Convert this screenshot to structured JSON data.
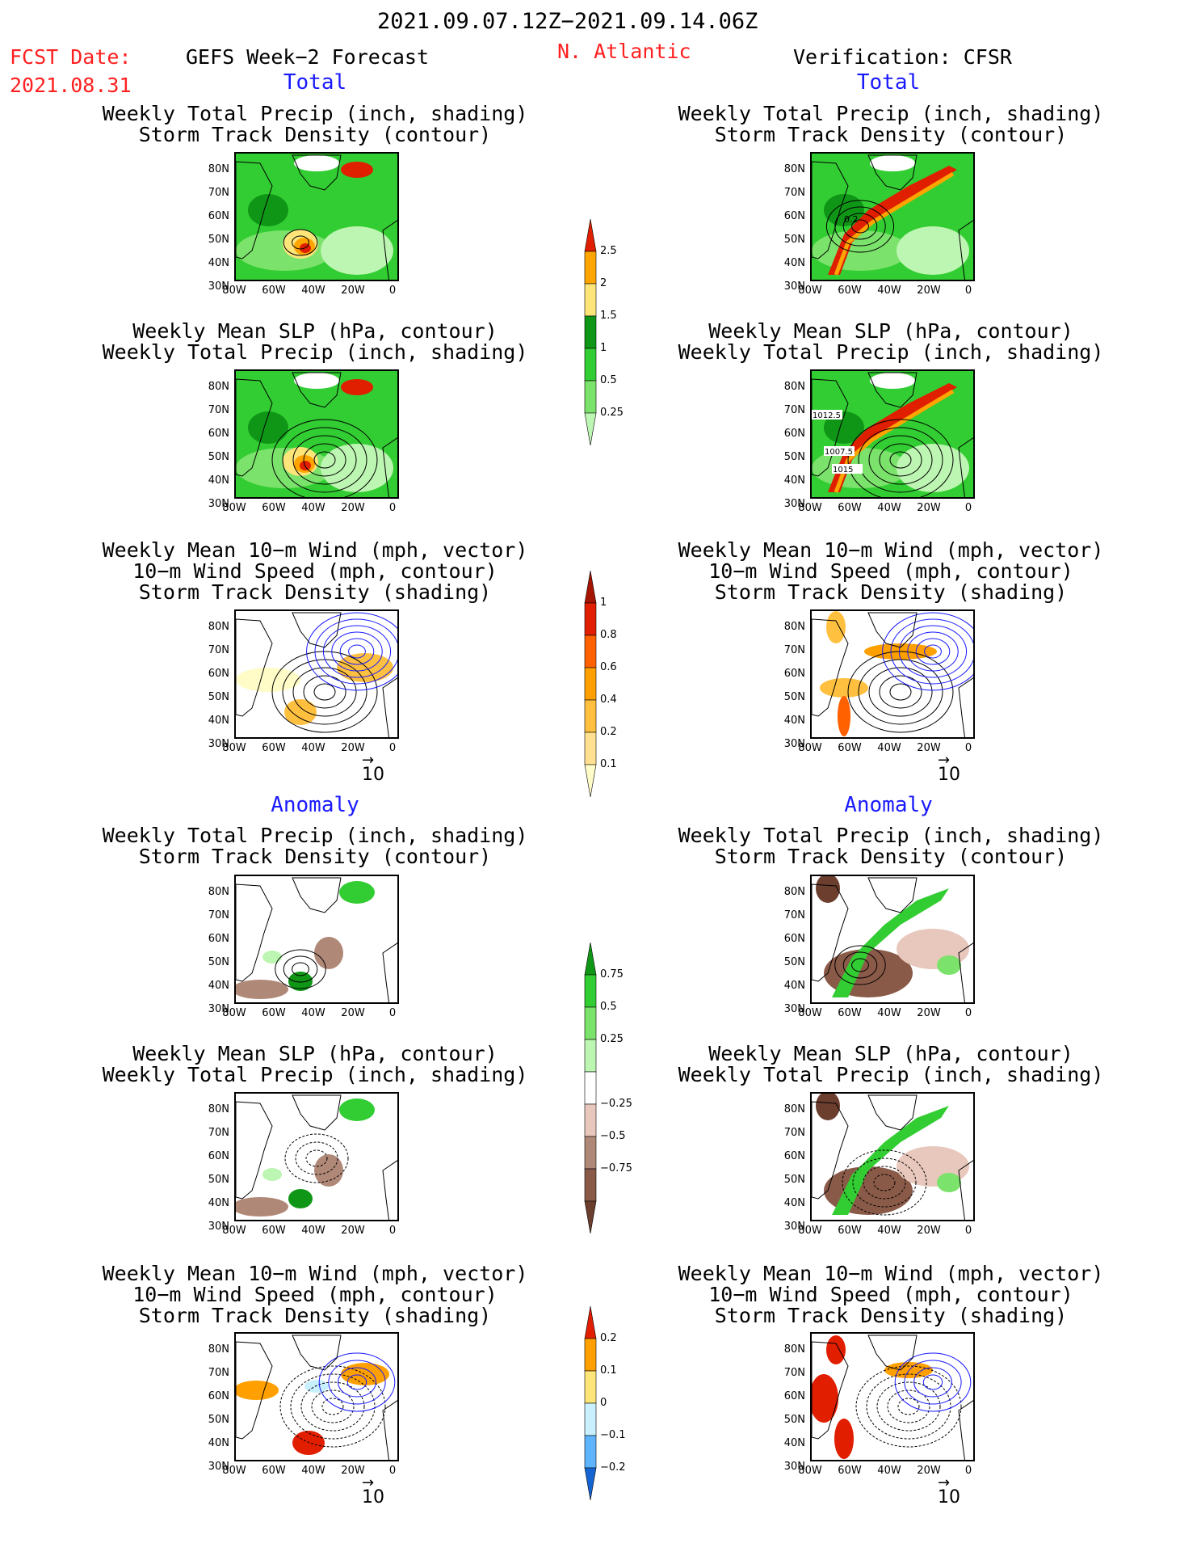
{
  "header": {
    "period": "2021.09.07.12Z−2021.09.14.06Z",
    "fcst_label": "FCST Date:",
    "fcst_date": "2021.08.31",
    "left_title": "GEFS Week−2 Forecast",
    "region": "N. Atlantic",
    "right_title": "Verification: CFSR"
  },
  "sections": {
    "total": "Total",
    "anomaly": "Anomaly"
  },
  "panel_titles": {
    "precip_track": [
      "Weekly Total Precip (inch, shading)",
      "Storm Track Density (contour)"
    ],
    "slp_precip": [
      "Weekly Mean SLP (hPa, contour)",
      "Weekly Total Precip (inch, shading)"
    ],
    "wind_track": [
      "Weekly Mean 10−m Wind (mph, vector)",
      "10−m Wind Speed (mph, contour)",
      "Storm Track Density (shading)"
    ]
  },
  "axes": {
    "y_ticks": [
      "80N",
      "70N",
      "60N",
      "50N",
      "40N",
      "30N"
    ],
    "x_ticks": [
      "80W",
      "60W",
      "40W",
      "20W",
      "0"
    ]
  },
  "vector_ref": "10",
  "contour_labels": {
    "verif_track": "0.2",
    "verif_slp": [
      "1012.5",
      "1007.5",
      "1015"
    ]
  },
  "colorbars": {
    "precip_total": {
      "labels": [
        "2.5",
        "2",
        "1.5",
        "1",
        "0.5",
        "0.25"
      ],
      "colors": [
        "#e01e00",
        "#ffa500",
        "#fde57a",
        "#0f9616",
        "#32cd32",
        "#7be26b",
        "#bdf5b2"
      ]
    },
    "track_total": {
      "labels": [
        "1",
        "0.8",
        "0.6",
        "0.4",
        "0.2",
        "0.1"
      ],
      "colors": [
        "#a51400",
        "#e11e00",
        "#ff6000",
        "#ffa000",
        "#ffc040",
        "#ffe090",
        "#fffcc8"
      ]
    },
    "precip_anom": {
      "labels": [
        "0.75",
        "0.5",
        "0.25",
        "−0.25",
        "−0.5",
        "−0.75"
      ],
      "colors": [
        "#0f9616",
        "#32cd32",
        "#7be26b",
        "#bdf5b2",
        "#ffffff",
        "#e8c8bc",
        "#b08878",
        "#8a5a48",
        "#6b3e2e"
      ]
    },
    "track_anom": {
      "labels": [
        "0.2",
        "0.1",
        "0",
        "−0.1",
        "−0.2"
      ],
      "colors": [
        "#e11e00",
        "#ffa000",
        "#fde57a",
        "#c8f0ff",
        "#5fb4ff",
        "#1464d2"
      ]
    }
  },
  "chart_data": [
    {
      "type": "heatmap",
      "title": "Weekly Total Precip (inch, shading) / Storm Track Density (contour)",
      "panel": "GEFS Week-2 Forecast - Total",
      "x_range": [
        "80W",
        "0"
      ],
      "y_range": [
        "25N",
        "85N"
      ]
    },
    {
      "type": "heatmap",
      "title": "Weekly Mean SLP (hPa, contour) / Weekly Total Precip (inch, shading)",
      "panel": "GEFS Week-2 Forecast - Total",
      "x_range": [
        "80W",
        "0"
      ],
      "y_range": [
        "25N",
        "85N"
      ]
    },
    {
      "type": "heatmap",
      "title": "Weekly Mean 10-m Wind / 10-m Wind Speed / Storm Track Density",
      "panel": "GEFS Week-2 Forecast - Total",
      "x_range": [
        "80W",
        "0"
      ],
      "y_range": [
        "25N",
        "85N"
      ]
    },
    {
      "type": "heatmap",
      "title": "Weekly Total Precip (inch, shading) / Storm Track Density (contour)",
      "panel": "Verification: CFSR - Total",
      "x_range": [
        "80W",
        "0"
      ],
      "y_range": [
        "25N",
        "85N"
      ]
    },
    {
      "type": "heatmap",
      "title": "Weekly Mean SLP (hPa, contour) / Weekly Total Precip (inch, shading)",
      "panel": "Verification: CFSR - Total",
      "x_range": [
        "80W",
        "0"
      ],
      "y_range": [
        "25N",
        "85N"
      ]
    },
    {
      "type": "heatmap",
      "title": "Weekly Mean 10-m Wind / 10-m Wind Speed / Storm Track Density",
      "panel": "Verification: CFSR - Total",
      "x_range": [
        "80W",
        "0"
      ],
      "y_range": [
        "25N",
        "85N"
      ]
    },
    {
      "type": "heatmap",
      "title": "Weekly Total Precip (inch, shading) / Storm Track Density (contour)",
      "panel": "GEFS Week-2 Forecast - Anomaly",
      "x_range": [
        "80W",
        "0"
      ],
      "y_range": [
        "25N",
        "85N"
      ]
    },
    {
      "type": "heatmap",
      "title": "Weekly Mean SLP (hPa, contour) / Weekly Total Precip (inch, shading)",
      "panel": "GEFS Week-2 Forecast - Anomaly",
      "x_range": [
        "80W",
        "0"
      ],
      "y_range": [
        "25N",
        "85N"
      ]
    },
    {
      "type": "heatmap",
      "title": "Weekly Mean 10-m Wind / 10-m Wind Speed / Storm Track Density",
      "panel": "GEFS Week-2 Forecast - Anomaly",
      "x_range": [
        "80W",
        "0"
      ],
      "y_range": [
        "25N",
        "85N"
      ]
    },
    {
      "type": "heatmap",
      "title": "Weekly Total Precip (inch, shading) / Storm Track Density (contour)",
      "panel": "Verification: CFSR - Anomaly",
      "x_range": [
        "80W",
        "0"
      ],
      "y_range": [
        "25N",
        "85N"
      ]
    },
    {
      "type": "heatmap",
      "title": "Weekly Mean SLP (hPa, contour) / Weekly Total Precip (inch, shading)",
      "panel": "Verification: CFSR - Anomaly",
      "x_range": [
        "80W",
        "0"
      ],
      "y_range": [
        "25N",
        "85N"
      ]
    },
    {
      "type": "heatmap",
      "title": "Weekly Mean 10-m Wind / 10-m Wind Speed / Storm Track Density",
      "panel": "Verification: CFSR - Anomaly",
      "x_range": [
        "80W",
        "0"
      ],
      "y_range": [
        "25N",
        "85N"
      ]
    }
  ]
}
